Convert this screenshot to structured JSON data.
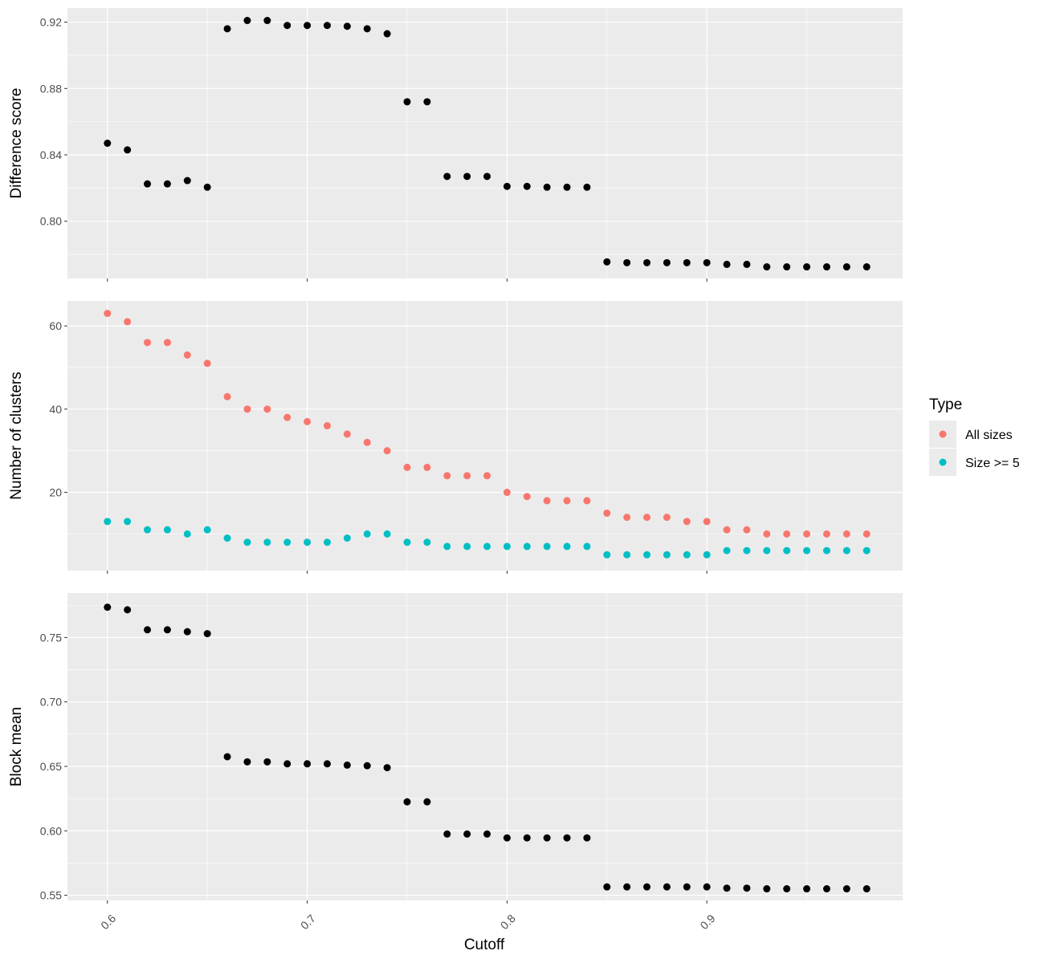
{
  "chart_data": {
    "type": "scatter",
    "x_label": "Cutoff",
    "x_ticks": [
      "0.6",
      "0.7",
      "0.8",
      "0.9"
    ],
    "xlim": [
      0.58,
      0.998
    ],
    "colors": {
      "single": "#000000",
      "all_sizes": "#F8766D",
      "size_ge_5": "#00BFC4",
      "panel_bg": "#EBEBEB",
      "grid": "#ffffff"
    },
    "legend": {
      "title": "Type",
      "position": "right",
      "entries": [
        "All sizes",
        "Size >= 5"
      ]
    },
    "x": [
      0.6,
      0.61,
      0.62,
      0.63,
      0.64,
      0.65,
      0.66,
      0.67,
      0.68,
      0.69,
      0.7,
      0.71,
      0.72,
      0.73,
      0.74,
      0.75,
      0.76,
      0.77,
      0.78,
      0.79,
      0.8,
      0.81,
      0.82,
      0.83,
      0.84,
      0.85,
      0.86,
      0.87,
      0.88,
      0.89,
      0.9,
      0.91,
      0.92,
      0.93,
      0.94,
      0.95,
      0.96,
      0.97,
      0.98
    ],
    "panels": [
      {
        "ylabel": "Difference score",
        "ylim": [
          0.7655,
          0.9285
        ],
        "y_ticks": [
          "0.80",
          "0.84",
          "0.88",
          "0.92"
        ],
        "y_tick_values": [
          0.8,
          0.84,
          0.88,
          0.92
        ],
        "y_minor": [
          0.78,
          0.82,
          0.86,
          0.9
        ],
        "grid": true,
        "series": [
          {
            "key": "single",
            "values": [
              0.847,
              0.843,
              0.8225,
              0.8225,
              0.8245,
              0.8205,
              0.916,
              0.921,
              0.921,
              0.918,
              0.918,
              0.918,
              0.9175,
              0.916,
              0.913,
              0.872,
              0.872,
              0.827,
              0.827,
              0.827,
              0.821,
              0.821,
              0.8205,
              0.8205,
              0.8205,
              0.7755,
              0.775,
              0.775,
              0.775,
              0.775,
              0.775,
              0.774,
              0.774,
              0.7725,
              0.7725,
              0.7725,
              0.7725,
              0.7725,
              0.7725
            ]
          }
        ]
      },
      {
        "ylabel": "Number of clusters",
        "ylim": [
          1.2,
          66.0
        ],
        "y_ticks": [
          "20",
          "40",
          "60"
        ],
        "y_tick_values": [
          20,
          40,
          60
        ],
        "y_minor": [
          10,
          30,
          50
        ],
        "grid": true,
        "series": [
          {
            "key": "all_sizes",
            "name": "All sizes",
            "values": [
              63,
              61,
              56,
              56,
              53,
              51,
              43,
              40,
              40,
              38,
              37,
              36,
              34,
              32,
              30,
              26,
              26,
              24,
              24,
              24,
              20,
              19,
              18,
              18,
              18,
              15,
              14,
              14,
              14,
              13,
              13,
              11,
              11,
              10,
              10,
              10,
              10,
              10,
              10
            ]
          },
          {
            "key": "size_ge_5",
            "name": "Size >= 5",
            "values": [
              13,
              13,
              11,
              11,
              10,
              11,
              9,
              8,
              8,
              8,
              8,
              8,
              9,
              10,
              10,
              8,
              8,
              7,
              7,
              7,
              7,
              7,
              7,
              7,
              7,
              5,
              5,
              5,
              5,
              5,
              5,
              6,
              6,
              6,
              6,
              6,
              6,
              6,
              6
            ]
          }
        ]
      },
      {
        "ylabel": "Block mean",
        "ylim": [
          0.546,
          0.7845
        ],
        "y_ticks": [
          "0.55",
          "0.60",
          "0.65",
          "0.70",
          "0.75"
        ],
        "y_tick_values": [
          0.55,
          0.6,
          0.65,
          0.7,
          0.75
        ],
        "y_minor": [
          0.575,
          0.625,
          0.675,
          0.725,
          0.775
        ],
        "grid": true,
        "series": [
          {
            "key": "single",
            "values": [
              0.7735,
              0.7715,
              0.756,
              0.756,
              0.7545,
              0.753,
              0.6575,
              0.6535,
              0.6535,
              0.652,
              0.652,
              0.652,
              0.651,
              0.6505,
              0.649,
              0.6225,
              0.6225,
              0.5975,
              0.5975,
              0.5975,
              0.5945,
              0.5945,
              0.5945,
              0.5945,
              0.5945,
              0.5565,
              0.5565,
              0.5565,
              0.5565,
              0.5565,
              0.5565,
              0.5555,
              0.5555,
              0.555,
              0.555,
              0.555,
              0.555,
              0.555,
              0.555
            ]
          }
        ]
      }
    ]
  }
}
